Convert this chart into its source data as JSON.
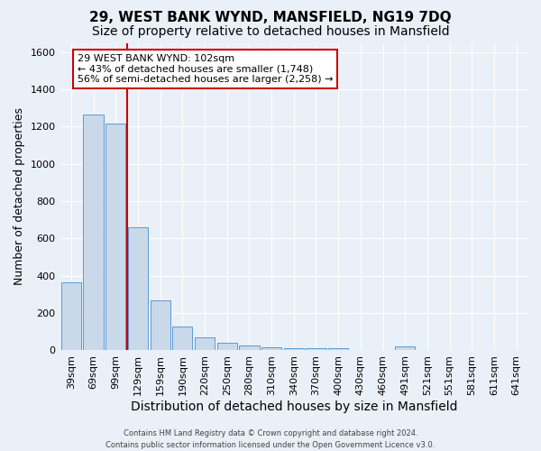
{
  "title": "29, WEST BANK WYND, MANSFIELD, NG19 7DQ",
  "subtitle": "Size of property relative to detached houses in Mansfield",
  "xlabel": "Distribution of detached houses by size in Mansfield",
  "ylabel": "Number of detached properties",
  "footer_line1": "Contains HM Land Registry data © Crown copyright and database right 2024.",
  "footer_line2": "Contains public sector information licensed under the Open Government Licence v3.0.",
  "categories": [
    "39sqm",
    "69sqm",
    "99sqm",
    "129sqm",
    "159sqm",
    "190sqm",
    "220sqm",
    "250sqm",
    "280sqm",
    "310sqm",
    "340sqm",
    "370sqm",
    "400sqm",
    "430sqm",
    "460sqm",
    "491sqm",
    "521sqm",
    "551sqm",
    "581sqm",
    "611sqm",
    "641sqm"
  ],
  "values": [
    365,
    1265,
    1215,
    660,
    265,
    125,
    70,
    38,
    25,
    15,
    10,
    8,
    8,
    0,
    0,
    22,
    0,
    0,
    0,
    0,
    0
  ],
  "bar_color": "#c9d9ea",
  "bar_edge_color": "#5b9bd5",
  "red_line_index": 2,
  "annotation_line1": "29 WEST BANK WYND: 102sqm",
  "annotation_line2": "← 43% of detached houses are smaller (1,748)",
  "annotation_line3": "56% of semi-detached houses are larger (2,258) →",
  "annotation_box_color": "#ffffff",
  "annotation_box_edge_color": "#cc0000",
  "ylim": [
    0,
    1650
  ],
  "yticks": [
    0,
    200,
    400,
    600,
    800,
    1000,
    1200,
    1400,
    1600
  ],
  "bg_color": "#eaf0f8",
  "plot_bg_color": "#eaf0f8",
  "grid_color": "#ffffff",
  "title_fontsize": 11,
  "subtitle_fontsize": 10,
  "xlabel_fontsize": 10,
  "ylabel_fontsize": 9,
  "tick_fontsize": 8,
  "annotation_fontsize": 8,
  "footer_fontsize": 6,
  "red_line_color": "#cc0000"
}
